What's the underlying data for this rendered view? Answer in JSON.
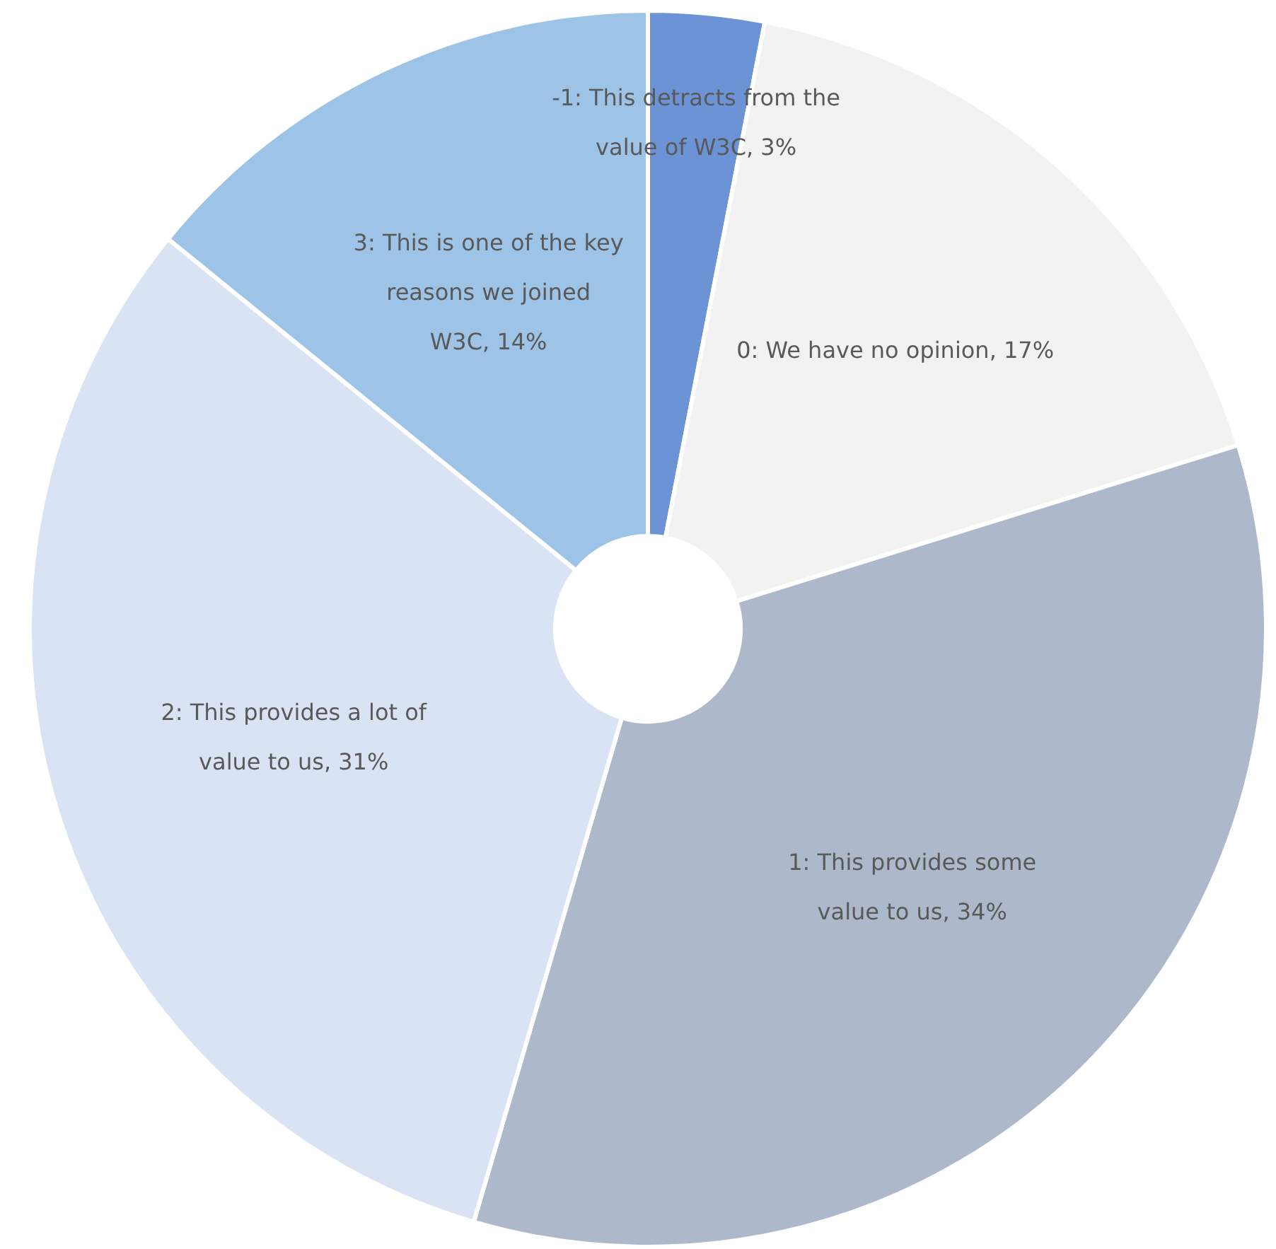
{
  "chart_data": {
    "type": "donut",
    "categories": [
      "-1: This detracts from the value of W3C",
      "0: We have no opinion",
      "1: This provides some value to us",
      "2: This provides a lot of value to us",
      "3: This is one of the key reasons we joined W3C"
    ],
    "values": [
      3,
      17,
      34,
      31,
      14
    ],
    "value_labels": [
      "3%",
      "17%",
      "34%",
      "31%",
      "14%"
    ],
    "colors": [
      "#6b93d6",
      "#f2f2f2",
      "#adb9ca",
      "#dae3f3",
      "#9dc3e6"
    ],
    "legend": false
  }
}
